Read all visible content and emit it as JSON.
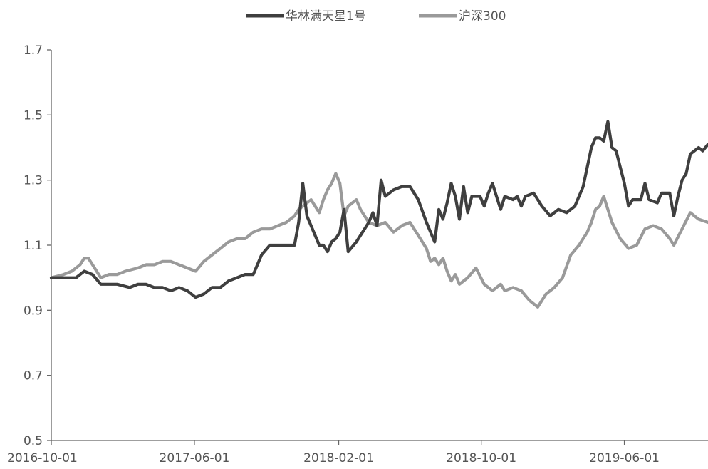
{
  "chart_data": {
    "type": "line",
    "title": "",
    "xlabel": "",
    "ylabel": "",
    "legend": "top-center",
    "grid": false,
    "ylim": [
      0.5,
      1.7
    ],
    "xlim": [
      "2016-10-01",
      "2019-10-21"
    ],
    "y_ticks": [
      "0.5",
      "0.7",
      "0.9",
      "1.1",
      "1.3",
      "1.5",
      "1.7"
    ],
    "x_ticks": [
      "2016-10-01",
      "2017-06-01",
      "2018-02-01",
      "2018-10-01",
      "2019-06-01"
    ],
    "series": [
      {
        "name": "华林满天星1号",
        "color": "#3f3f3f",
        "points": [
          [
            "2016-10-01",
            1.0
          ],
          [
            "2016-10-22",
            1.0
          ],
          [
            "2016-11-12",
            1.0
          ],
          [
            "2016-11-26",
            1.02
          ],
          [
            "2016-12-10",
            1.01
          ],
          [
            "2016-12-24",
            0.98
          ],
          [
            "2017-01-07",
            0.98
          ],
          [
            "2017-01-21",
            0.98
          ],
          [
            "2017-02-11",
            0.97
          ],
          [
            "2017-02-25",
            0.98
          ],
          [
            "2017-03-11",
            0.98
          ],
          [
            "2017-03-25",
            0.97
          ],
          [
            "2017-04-08",
            0.97
          ],
          [
            "2017-04-22",
            0.96
          ],
          [
            "2017-05-06",
            0.97
          ],
          [
            "2017-05-20",
            0.96
          ],
          [
            "2017-06-03",
            0.94
          ],
          [
            "2017-06-17",
            0.95
          ],
          [
            "2017-07-01",
            0.97
          ],
          [
            "2017-07-15",
            0.97
          ],
          [
            "2017-07-29",
            0.99
          ],
          [
            "2017-08-12",
            1.0
          ],
          [
            "2017-08-26",
            1.01
          ],
          [
            "2017-09-09",
            1.01
          ],
          [
            "2017-09-23",
            1.07
          ],
          [
            "2017-10-07",
            1.1
          ],
          [
            "2017-10-21",
            1.1
          ],
          [
            "2017-11-04",
            1.1
          ],
          [
            "2017-11-18",
            1.1
          ],
          [
            "2017-11-25",
            1.17
          ],
          [
            "2017-12-02",
            1.29
          ],
          [
            "2017-12-09",
            1.19
          ],
          [
            "2017-12-16",
            1.16
          ],
          [
            "2017-12-30",
            1.1
          ],
          [
            "2018-01-06",
            1.1
          ],
          [
            "2018-01-13",
            1.08
          ],
          [
            "2018-01-20",
            1.11
          ],
          [
            "2018-01-27",
            1.12
          ],
          [
            "2018-02-03",
            1.14
          ],
          [
            "2018-02-10",
            1.21
          ],
          [
            "2018-02-17",
            1.08
          ],
          [
            "2018-03-03",
            1.11
          ],
          [
            "2018-03-10",
            1.13
          ],
          [
            "2018-03-24",
            1.17
          ],
          [
            "2018-03-31",
            1.2
          ],
          [
            "2018-04-07",
            1.16
          ],
          [
            "2018-04-14",
            1.3
          ],
          [
            "2018-04-21",
            1.25
          ],
          [
            "2018-05-05",
            1.27
          ],
          [
            "2018-05-19",
            1.28
          ],
          [
            "2018-06-02",
            1.28
          ],
          [
            "2018-06-16",
            1.24
          ],
          [
            "2018-06-30",
            1.17
          ],
          [
            "2018-07-07",
            1.14
          ],
          [
            "2018-07-14",
            1.11
          ],
          [
            "2018-07-21",
            1.21
          ],
          [
            "2018-07-28",
            1.18
          ],
          [
            "2018-08-04",
            1.23
          ],
          [
            "2018-08-11",
            1.29
          ],
          [
            "2018-08-18",
            1.25
          ],
          [
            "2018-08-25",
            1.18
          ],
          [
            "2018-09-01",
            1.28
          ],
          [
            "2018-09-08",
            1.2
          ],
          [
            "2018-09-15",
            1.25
          ],
          [
            "2018-09-29",
            1.25
          ],
          [
            "2018-10-06",
            1.22
          ],
          [
            "2018-10-13",
            1.26
          ],
          [
            "2018-10-20",
            1.29
          ],
          [
            "2018-10-27",
            1.25
          ],
          [
            "2018-11-03",
            1.21
          ],
          [
            "2018-11-10",
            1.25
          ],
          [
            "2018-11-24",
            1.24
          ],
          [
            "2018-12-01",
            1.25
          ],
          [
            "2018-12-08",
            1.22
          ],
          [
            "2018-12-15",
            1.25
          ],
          [
            "2018-12-29",
            1.26
          ],
          [
            "2019-01-12",
            1.22
          ],
          [
            "2019-01-26",
            1.19
          ],
          [
            "2019-02-09",
            1.21
          ],
          [
            "2019-02-23",
            1.2
          ],
          [
            "2019-03-09",
            1.22
          ],
          [
            "2019-03-23",
            1.28
          ],
          [
            "2019-04-06",
            1.4
          ],
          [
            "2019-04-13",
            1.43
          ],
          [
            "2019-04-20",
            1.43
          ],
          [
            "2019-04-27",
            1.42
          ],
          [
            "2019-05-04",
            1.48
          ],
          [
            "2019-05-11",
            1.4
          ],
          [
            "2019-05-18",
            1.39
          ],
          [
            "2019-06-01",
            1.29
          ],
          [
            "2019-06-08",
            1.22
          ],
          [
            "2019-06-15",
            1.24
          ],
          [
            "2019-06-29",
            1.24
          ],
          [
            "2019-07-06",
            1.29
          ],
          [
            "2019-07-13",
            1.24
          ],
          [
            "2019-07-27",
            1.23
          ],
          [
            "2019-08-03",
            1.26
          ],
          [
            "2019-08-17",
            1.26
          ],
          [
            "2019-08-24",
            1.19
          ],
          [
            "2019-08-31",
            1.25
          ],
          [
            "2019-09-07",
            1.3
          ],
          [
            "2019-09-14",
            1.32
          ],
          [
            "2019-09-21",
            1.38
          ],
          [
            "2019-10-05",
            1.4
          ],
          [
            "2019-10-12",
            1.39
          ],
          [
            "2019-10-21",
            1.41
          ]
        ]
      },
      {
        "name": "沪深300",
        "color": "#9a9a9a",
        "points": [
          [
            "2016-10-01",
            1.0
          ],
          [
            "2016-10-22",
            1.01
          ],
          [
            "2016-11-05",
            1.02
          ],
          [
            "2016-11-19",
            1.04
          ],
          [
            "2016-11-26",
            1.06
          ],
          [
            "2016-12-03",
            1.06
          ],
          [
            "2016-12-10",
            1.04
          ],
          [
            "2016-12-24",
            1.0
          ],
          [
            "2017-01-07",
            1.01
          ],
          [
            "2017-01-21",
            1.01
          ],
          [
            "2017-02-04",
            1.02
          ],
          [
            "2017-02-25",
            1.03
          ],
          [
            "2017-03-11",
            1.04
          ],
          [
            "2017-03-25",
            1.04
          ],
          [
            "2017-04-08",
            1.05
          ],
          [
            "2017-04-22",
            1.05
          ],
          [
            "2017-05-06",
            1.04
          ],
          [
            "2017-05-20",
            1.03
          ],
          [
            "2017-06-03",
            1.02
          ],
          [
            "2017-06-17",
            1.05
          ],
          [
            "2017-07-01",
            1.07
          ],
          [
            "2017-07-15",
            1.09
          ],
          [
            "2017-07-29",
            1.11
          ],
          [
            "2017-08-12",
            1.12
          ],
          [
            "2017-08-26",
            1.12
          ],
          [
            "2017-09-09",
            1.14
          ],
          [
            "2017-09-23",
            1.15
          ],
          [
            "2017-10-07",
            1.15
          ],
          [
            "2017-10-21",
            1.16
          ],
          [
            "2017-11-04",
            1.17
          ],
          [
            "2017-11-18",
            1.19
          ],
          [
            "2017-11-25",
            1.21
          ],
          [
            "2017-12-02",
            1.22
          ],
          [
            "2017-12-16",
            1.24
          ],
          [
            "2017-12-30",
            1.2
          ],
          [
            "2018-01-06",
            1.24
          ],
          [
            "2018-01-13",
            1.27
          ],
          [
            "2018-01-20",
            1.29
          ],
          [
            "2018-01-27",
            1.32
          ],
          [
            "2018-02-03",
            1.29
          ],
          [
            "2018-02-10",
            1.19
          ],
          [
            "2018-02-17",
            1.22
          ],
          [
            "2018-03-03",
            1.24
          ],
          [
            "2018-03-10",
            1.21
          ],
          [
            "2018-03-24",
            1.17
          ],
          [
            "2018-04-07",
            1.16
          ],
          [
            "2018-04-21",
            1.17
          ],
          [
            "2018-05-05",
            1.14
          ],
          [
            "2018-05-19",
            1.16
          ],
          [
            "2018-06-02",
            1.17
          ],
          [
            "2018-06-16",
            1.13
          ],
          [
            "2018-06-30",
            1.09
          ],
          [
            "2018-07-07",
            1.05
          ],
          [
            "2018-07-14",
            1.06
          ],
          [
            "2018-07-21",
            1.04
          ],
          [
            "2018-07-28",
            1.06
          ],
          [
            "2018-08-04",
            1.02
          ],
          [
            "2018-08-11",
            0.99
          ],
          [
            "2018-08-18",
            1.01
          ],
          [
            "2018-08-25",
            0.98
          ],
          [
            "2018-09-08",
            1.0
          ],
          [
            "2018-09-22",
            1.03
          ],
          [
            "2018-10-06",
            0.98
          ],
          [
            "2018-10-20",
            0.96
          ],
          [
            "2018-11-03",
            0.98
          ],
          [
            "2018-11-10",
            0.96
          ],
          [
            "2018-11-24",
            0.97
          ],
          [
            "2018-12-08",
            0.96
          ],
          [
            "2018-12-22",
            0.93
          ],
          [
            "2019-01-05",
            0.91
          ],
          [
            "2019-01-19",
            0.95
          ],
          [
            "2019-02-02",
            0.97
          ],
          [
            "2019-02-16",
            1.0
          ],
          [
            "2019-03-02",
            1.07
          ],
          [
            "2019-03-16",
            1.1
          ],
          [
            "2019-03-30",
            1.14
          ],
          [
            "2019-04-06",
            1.17
          ],
          [
            "2019-04-13",
            1.21
          ],
          [
            "2019-04-20",
            1.22
          ],
          [
            "2019-04-27",
            1.25
          ],
          [
            "2019-05-11",
            1.17
          ],
          [
            "2019-05-25",
            1.12
          ],
          [
            "2019-06-08",
            1.09
          ],
          [
            "2019-06-22",
            1.1
          ],
          [
            "2019-07-06",
            1.15
          ],
          [
            "2019-07-20",
            1.16
          ],
          [
            "2019-08-03",
            1.15
          ],
          [
            "2019-08-17",
            1.12
          ],
          [
            "2019-08-24",
            1.1
          ],
          [
            "2019-09-07",
            1.15
          ],
          [
            "2019-09-21",
            1.2
          ],
          [
            "2019-10-05",
            1.18
          ],
          [
            "2019-10-21",
            1.17
          ]
        ]
      }
    ]
  }
}
